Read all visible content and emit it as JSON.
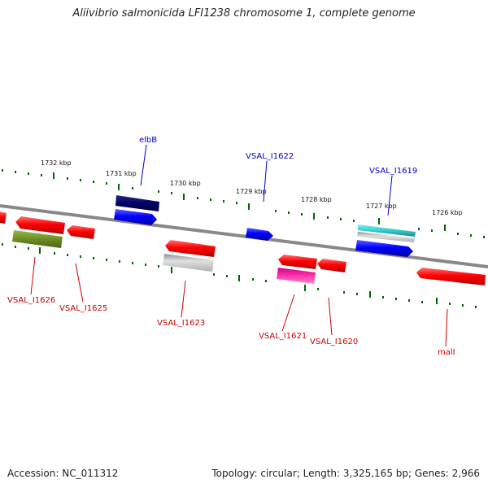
{
  "title": "Aliivibrio salmonicida LFI1238 chromosome 1, complete genome",
  "footer": {
    "accession": "Accession: NC_011312",
    "summary": "Topology: circular; Length: 3,325,165 bp; Genes: 2,966"
  },
  "kbp_labels": [
    "1732 kbp",
    "1731 kbp",
    "1730 kbp",
    "1729 kbp",
    "1728 kbp",
    "1727 kbp",
    "1726 kbp"
  ],
  "genes_top": [
    {
      "name": "elbB",
      "color": "#0000cc"
    },
    {
      "name": "VSAL_I1622",
      "color": "#0000cc"
    },
    {
      "name": "VSAL_I1619",
      "color": "#0000cc"
    }
  ],
  "genes_bottom": [
    {
      "name": "VSAL_I1626",
      "color": "#cc0000"
    },
    {
      "name": "VSAL_I1625",
      "color": "#cc0000"
    },
    {
      "name": "VSAL_I1623",
      "color": "#cc0000"
    },
    {
      "name": "VSAL_I1621",
      "color": "#cc0000"
    },
    {
      "name": "VSAL_I1620",
      "color": "#cc0000"
    },
    {
      "name": "malI",
      "color": "#cc0000"
    }
  ],
  "colors": {
    "forward_gene": "#0000ff",
    "forward_gene_dark": "#000066",
    "reverse_gene": "#ff0000",
    "olive_gene": "#6b8e23",
    "grey_gene": "#c0c0c0",
    "magenta_gene": "#ff33aa",
    "cyan_gene": "#33cccc",
    "backbone": "#888888",
    "ticks": "#006600"
  }
}
